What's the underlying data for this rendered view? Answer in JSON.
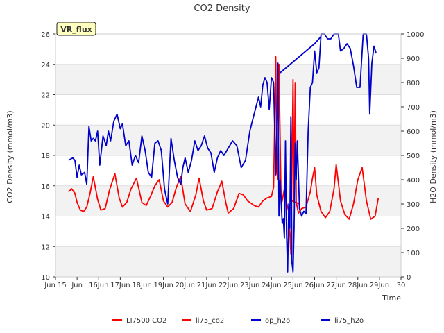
{
  "chart_data": {
    "type": "line",
    "title": "CO2 Density",
    "xlabel": "Time",
    "ylabel_left": "CO2 Density (mmol/m3)",
    "ylabel_right": "H2O Density (mmol/m3)",
    "badge": "VR_flux",
    "xlim": [
      14,
      30
    ],
    "ylim_left": [
      10,
      26
    ],
    "ylim_right": [
      0,
      1000
    ],
    "x_ticks": [
      {
        "v": 14,
        "label": "Jun 15"
      },
      {
        "v": 15,
        "label": "Jun"
      },
      {
        "v": 16,
        "label": "16Jun"
      },
      {
        "v": 17,
        "label": "17Jun"
      },
      {
        "v": 18,
        "label": "18Jun"
      },
      {
        "v": 19,
        "label": "19Jun"
      },
      {
        "v": 20,
        "label": "20Jun"
      },
      {
        "v": 21,
        "label": "21Jun"
      },
      {
        "v": 22,
        "label": "22Jun"
      },
      {
        "v": 23,
        "label": "23Jun"
      },
      {
        "v": 24,
        "label": "24Jun"
      },
      {
        "v": 25,
        "label": "25Jun"
      },
      {
        "v": 26,
        "label": "26Jun"
      },
      {
        "v": 27,
        "label": "27Jun"
      },
      {
        "v": 28,
        "label": "28Jun"
      },
      {
        "v": 29,
        "label": "29Jun"
      },
      {
        "v": 30,
        "label": "30"
      }
    ],
    "y_ticks_left": [
      10,
      12,
      14,
      16,
      18,
      20,
      22,
      24,
      26
    ],
    "y_ticks_right": [
      0,
      100,
      200,
      300,
      400,
      500,
      600,
      700,
      800,
      900,
      1000
    ],
    "grid": true,
    "legend_position": "bottom",
    "series": [
      {
        "name": "LI7500 CO2",
        "axis": "left",
        "color": "#ff0000",
        "x": [
          24.95,
          25.3
        ],
        "y": [
          15.0,
          14.8
        ]
      },
      {
        "name": "li75_co2",
        "axis": "left",
        "color": "#ff0000",
        "x": [
          14.6,
          14.75,
          14.9,
          15.0,
          15.15,
          15.3,
          15.45,
          15.6,
          15.75,
          15.95,
          16.1,
          16.3,
          16.5,
          16.75,
          16.95,
          17.1,
          17.3,
          17.5,
          17.75,
          18.0,
          18.2,
          18.4,
          18.6,
          18.8,
          19.0,
          19.2,
          19.4,
          19.6,
          19.8,
          20.0,
          20.25,
          20.5,
          20.65,
          20.85,
          21.0,
          21.25,
          21.5,
          21.7,
          21.9,
          22.0,
          22.25,
          22.5,
          22.7,
          22.9,
          23.0,
          23.2,
          23.4,
          23.6,
          23.8,
          24.0,
          24.1,
          24.2,
          24.25,
          24.3,
          24.35,
          24.45,
          24.5,
          24.6,
          24.7,
          24.8,
          24.9,
          25.0,
          25.05,
          25.1,
          25.15,
          25.25,
          25.4,
          25.6,
          25.8,
          25.9,
          26.0,
          26.1,
          26.3,
          26.5,
          26.7,
          26.9,
          27.0,
          27.2,
          27.4,
          27.6,
          27.8,
          28.0,
          28.2,
          28.4,
          28.6,
          28.8,
          28.95
        ],
        "y": [
          15.6,
          15.8,
          15.5,
          14.9,
          14.4,
          14.3,
          14.6,
          15.5,
          16.6,
          15.1,
          14.4,
          14.5,
          15.7,
          16.8,
          15.2,
          14.6,
          14.9,
          15.8,
          16.5,
          14.9,
          14.7,
          15.3,
          16.0,
          16.4,
          15.0,
          14.6,
          14.9,
          15.9,
          16.6,
          14.8,
          14.3,
          15.4,
          16.5,
          15.0,
          14.4,
          14.5,
          15.6,
          16.3,
          14.8,
          14.2,
          14.5,
          15.5,
          15.4,
          15.0,
          14.9,
          14.7,
          14.6,
          15.0,
          15.2,
          15.3,
          15.9,
          24.5,
          17.0,
          16.4,
          24.0,
          14.8,
          15.0,
          15.8,
          14.9,
          14.3,
          11.5,
          23.0,
          14.9,
          22.8,
          14.9,
          14.2,
          14.5,
          14.6,
          15.6,
          16.5,
          17.2,
          15.4,
          14.3,
          13.9,
          14.3,
          15.8,
          17.4,
          15.0,
          14.1,
          13.8,
          14.8,
          16.4,
          17.2,
          15.0,
          13.8,
          14.0,
          15.2
        ]
      },
      {
        "name": "op_h2o",
        "axis": "right",
        "color": "#0000cc",
        "x": [
          24.4,
          26.0,
          26.3
        ],
        "y": [
          840,
          960,
          990
        ]
      },
      {
        "name": "li75_h2o",
        "axis": "right",
        "color": "#0000cc",
        "x": [
          14.6,
          14.8,
          14.9,
          15.0,
          15.1,
          15.2,
          15.35,
          15.45,
          15.55,
          15.65,
          15.75,
          15.85,
          15.95,
          16.05,
          16.2,
          16.35,
          16.45,
          16.55,
          16.7,
          16.85,
          17.0,
          17.1,
          17.25,
          17.4,
          17.55,
          17.7,
          17.85,
          18.0,
          18.15,
          18.3,
          18.45,
          18.6,
          18.75,
          18.9,
          19.05,
          19.2,
          19.35,
          19.5,
          19.65,
          19.8,
          19.9,
          20.0,
          20.15,
          20.3,
          20.45,
          20.6,
          20.75,
          20.9,
          21.05,
          21.2,
          21.35,
          21.5,
          21.65,
          21.8,
          22.0,
          22.2,
          22.4,
          22.6,
          22.8,
          23.0,
          23.2,
          23.4,
          23.5,
          23.6,
          23.7,
          23.8,
          23.9,
          24.0,
          24.1,
          24.2,
          24.25,
          24.3,
          24.35,
          24.4,
          24.5,
          24.55,
          24.6,
          24.65,
          24.7,
          24.75,
          24.8,
          24.85,
          24.9,
          24.95,
          25.0,
          25.05,
          25.1,
          25.15,
          25.2,
          25.3,
          25.4,
          25.5,
          25.6,
          25.7,
          25.8,
          25.9,
          26.0,
          26.1,
          26.2,
          26.3,
          26.45,
          26.6,
          26.75,
          26.9,
          27.1,
          27.2,
          27.35,
          27.5,
          27.65,
          27.8,
          27.95,
          28.1,
          28.25,
          28.4,
          28.5,
          28.55,
          28.65,
          28.75,
          28.85
        ],
        "y": [
          480,
          490,
          480,
          410,
          460,
          420,
          430,
          380,
          620,
          560,
          570,
          560,
          600,
          460,
          580,
          540,
          600,
          560,
          640,
          670,
          610,
          630,
          540,
          560,
          460,
          500,
          470,
          580,
          520,
          430,
          410,
          550,
          560,
          520,
          360,
          300,
          570,
          480,
          410,
          380,
          450,
          490,
          430,
          480,
          560,
          520,
          540,
          580,
          530,
          510,
          430,
          490,
          520,
          500,
          530,
          560,
          540,
          450,
          480,
          600,
          670,
          740,
          700,
          790,
          820,
          800,
          690,
          820,
          800,
          420,
          600,
          880,
          250,
          400,
          220,
          240,
          160,
          560,
          180,
          20,
          300,
          200,
          660,
          60,
          20,
          200,
          550,
          400,
          560,
          280,
          250,
          270,
          260,
          600,
          780,
          800,
          930,
          840,
          860,
          1000,
          1000,
          980,
          980,
          1000,
          1000,
          930,
          940,
          960,
          940,
          870,
          780,
          780,
          1000,
          1000,
          900,
          670,
          880,
          950,
          920
        ]
      }
    ]
  }
}
